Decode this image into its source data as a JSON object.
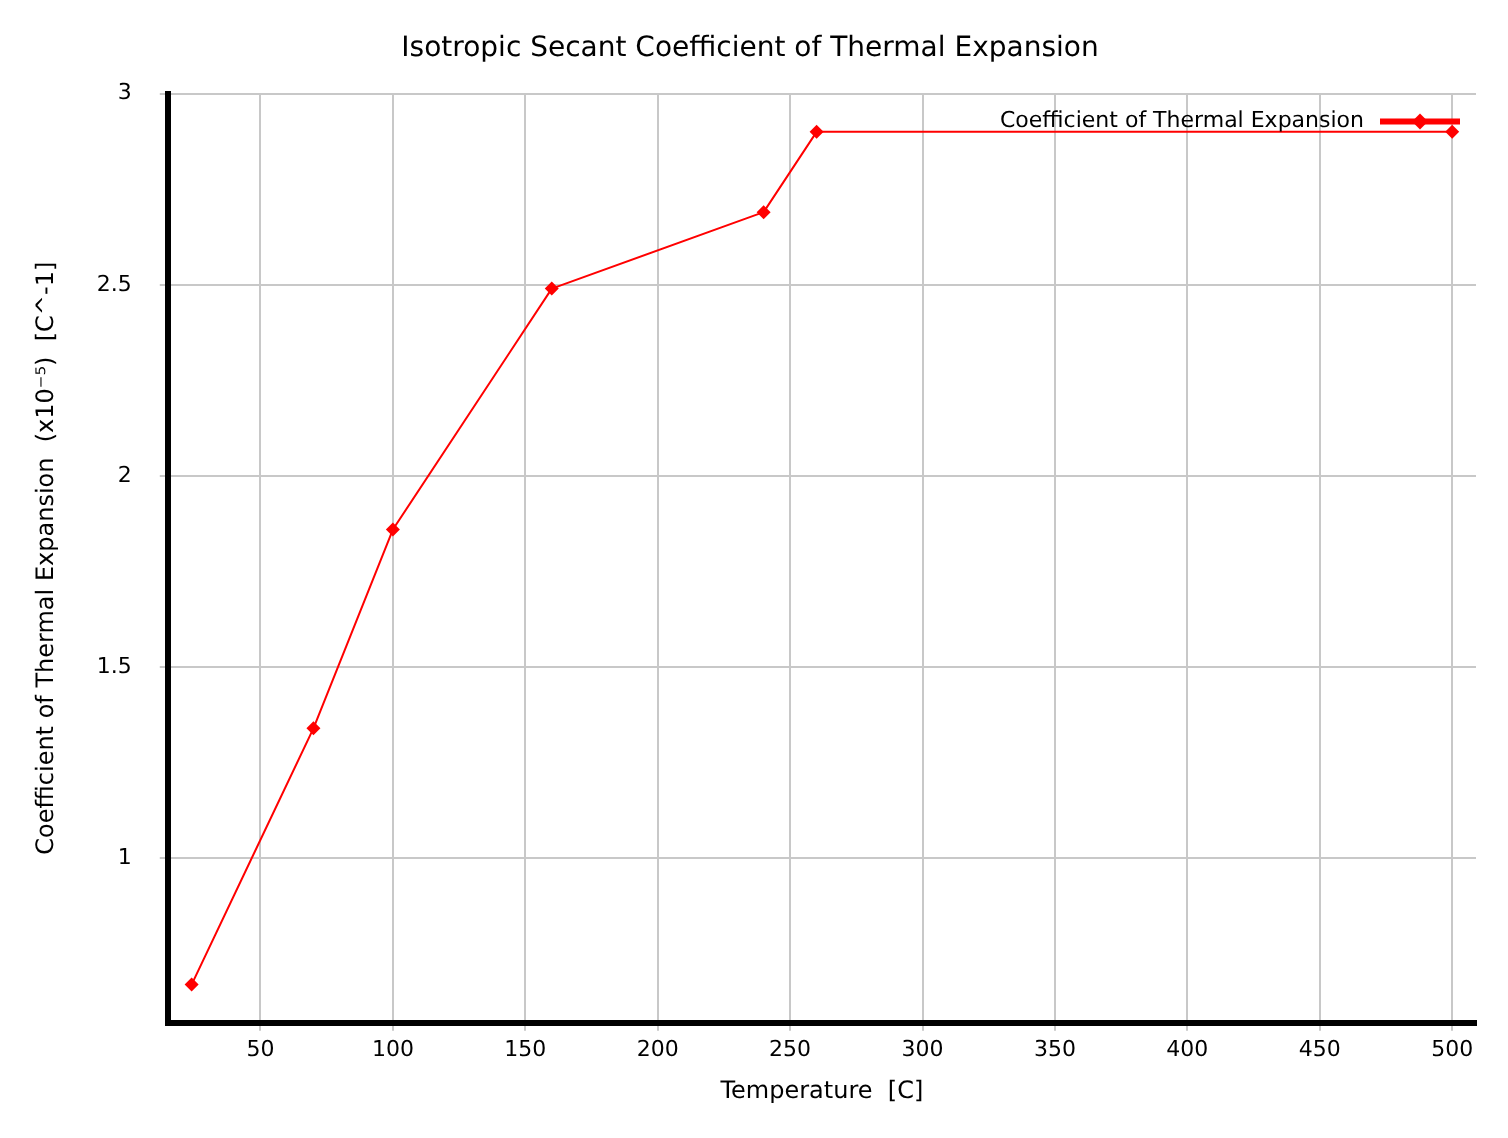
{
  "chart_data": {
    "type": "line",
    "title": "Isotropic Secant Coefficient of Thermal Expansion",
    "xlabel": "Temperature  [C]",
    "ylabel": "Coefficient of Thermal Expansion  (x10⁻⁵)  [C^-1]",
    "x": [
      24,
      70,
      100,
      160,
      240,
      260,
      500
    ],
    "series": [
      {
        "name": "Coefficient of Thermal Expansion",
        "color": "#ff0000",
        "values": [
          0.67,
          1.34,
          1.86,
          2.49,
          2.69,
          2.9,
          2.9
        ]
      }
    ],
    "xlim": [
      15,
      509
    ],
    "xticks": [
      50,
      100,
      150,
      200,
      250,
      300,
      350,
      400,
      450,
      500
    ],
    "ylim": [
      0.57,
      3
    ],
    "yticks": [
      1,
      1.5,
      2,
      2.5,
      3
    ],
    "grid": true,
    "legend": "top right",
    "marker": "diamond",
    "line_style": "solid"
  }
}
